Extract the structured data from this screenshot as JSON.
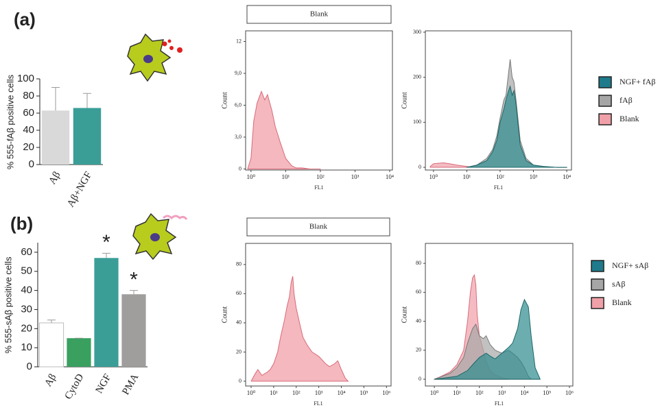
{
  "chart_data": [
    {
      "type": "bar",
      "panel_label": "(a)",
      "ylabel": "% 555-fAβ positive cells",
      "categories": [
        "Aβ",
        "Aβ+NGF"
      ],
      "values": [
        63,
        66
      ],
      "errors": [
        27,
        17
      ],
      "colors": [
        "#d9d9d9",
        "#3a9e97"
      ],
      "ylim": [
        0,
        100
      ],
      "yticks": [
        0,
        20,
        40,
        60,
        80,
        100
      ]
    },
    {
      "type": "area",
      "title": "Blank",
      "ylabel": "Count",
      "xlabel": "FL1",
      "xscale": "log",
      "xlim": [
        0.7,
        12000
      ],
      "ylim": [
        -0.1,
        13
      ],
      "xticks": [
        {
          "value": 1,
          "label": "10⁰"
        },
        {
          "value": 10,
          "label": "10¹"
        },
        {
          "value": 100,
          "label": "10²"
        },
        {
          "value": 1000,
          "label": "10³"
        },
        {
          "value": 10000,
          "label": "10⁴"
        }
      ],
      "yticks": [
        0,
        {
          "value": 3,
          "label": "3,0"
        },
        {
          "value": 6,
          "label": "6,0"
        },
        {
          "value": 9,
          "label": "9,0"
        },
        12
      ],
      "series": [
        {
          "name": "Blank",
          "color": "#f0a0a8",
          "x": [
            0.8,
            1,
            1.2,
            1.5,
            2,
            2.5,
            3,
            4,
            5,
            7,
            10,
            15,
            20,
            30,
            50,
            100
          ],
          "values": [
            0,
            1,
            4.5,
            6.2,
            7.3,
            6.5,
            7,
            5.5,
            4,
            2.5,
            1,
            0.3,
            0.1,
            0.1,
            0,
            0
          ]
        }
      ]
    },
    {
      "type": "area",
      "ylabel": "Count",
      "xlabel": "FL1",
      "xscale": "log",
      "legend": "right",
      "xlim": [
        0.57,
        13900
      ],
      "ylim": [
        -6,
        303
      ],
      "xticks": [
        {
          "value": 1,
          "label": "10⁰"
        },
        {
          "value": 10,
          "label": "10¹"
        },
        {
          "value": 100,
          "label": "10²"
        },
        {
          "value": 1000,
          "label": "10³"
        },
        {
          "value": 10000,
          "label": "10⁴"
        }
      ],
      "yticks": [
        0,
        100,
        200,
        300
      ],
      "series": [
        {
          "name": "NGF+ fAβ",
          "color": "#2e8b8e",
          "x": [
            10,
            20,
            40,
            60,
            80,
            100,
            130,
            150,
            180,
            200,
            230,
            260,
            300,
            400,
            600,
            1000,
            2000,
            5000,
            10000
          ],
          "values": [
            0,
            5,
            15,
            35,
            60,
            100,
            130,
            150,
            170,
            180,
            160,
            170,
            140,
            50,
            15,
            5,
            2,
            0,
            0
          ]
        },
        {
          "name": "fAβ",
          "color": "#a6a6a6",
          "x": [
            10,
            20,
            40,
            60,
            80,
            100,
            130,
            150,
            180,
            200,
            230,
            260,
            300,
            400,
            600,
            1000,
            2000,
            5000,
            10000
          ],
          "values": [
            0,
            5,
            20,
            40,
            70,
            110,
            150,
            160,
            210,
            240,
            200,
            190,
            150,
            60,
            20,
            5,
            2,
            0,
            0
          ]
        },
        {
          "name": "Blank",
          "color": "#f0a0a8",
          "x": [
            0.8,
            1,
            2,
            3,
            5,
            10,
            20
          ],
          "values": [
            2,
            8,
            10,
            8,
            5,
            2,
            0
          ]
        }
      ]
    },
    {
      "type": "bar",
      "panel_label": "(b)",
      "ylabel": "% 555-sAβ positive cells",
      "categories": [
        "Aβ",
        "CytoD",
        "NGF",
        "PMA"
      ],
      "values": [
        23,
        15,
        57,
        38
      ],
      "errors": [
        1.5,
        0,
        2.5,
        2
      ],
      "colors": [
        "#ffffff",
        "#3aa060",
        "#3a9e97",
        "#a09e9c"
      ],
      "annotations": [
        {
          "category": "NGF",
          "text": "*"
        },
        {
          "category": "PMA",
          "text": "*"
        }
      ],
      "ylim": [
        0,
        65
      ],
      "yticks": [
        0,
        10,
        20,
        30,
        40,
        50,
        60
      ]
    },
    {
      "type": "area",
      "title": "Blank",
      "ylabel": "Count",
      "xlabel": "FL1",
      "xscale": "log",
      "xlim": [
        0.57,
        1600000
      ],
      "ylim": [
        -3.3,
        94.5
      ],
      "xticks": [
        {
          "value": 1,
          "label": "10⁰"
        },
        {
          "value": 10,
          "label": "10¹"
        },
        {
          "value": 100,
          "label": "10²"
        },
        {
          "value": 1000,
          "label": "10³"
        },
        {
          "value": 10000,
          "label": "10⁴"
        },
        {
          "value": 100000,
          "label": "10⁵"
        },
        {
          "value": 1000000,
          "label": "10⁶"
        }
      ],
      "yticks": [
        0,
        20,
        40,
        60,
        80
      ],
      "series": [
        {
          "name": "Blank",
          "color": "#f0a0a8",
          "x": [
            1,
            1.5,
            2,
            3,
            5,
            7,
            10,
            15,
            20,
            30,
            40,
            50,
            60,
            70,
            80,
            100,
            150,
            200,
            300,
            500,
            1000,
            2000,
            3000,
            5000,
            7000,
            10000,
            15000,
            20000
          ],
          "values": [
            0,
            5,
            8,
            4,
            6,
            8,
            12,
            20,
            30,
            42,
            52,
            58,
            68,
            72,
            60,
            50,
            38,
            30,
            25,
            20,
            17,
            12,
            10,
            12,
            14,
            8,
            2,
            0
          ]
        }
      ]
    },
    {
      "type": "area",
      "ylabel": "Count",
      "xlabel": "FL1",
      "xscale": "log",
      "legend": "right",
      "xlim": [
        0.4,
        1420000
      ],
      "ylim": [
        -4.7,
        93.8
      ],
      "xticks": [
        {
          "value": 1,
          "label": "10⁰"
        },
        {
          "value": 10,
          "label": "10¹"
        },
        {
          "value": 100,
          "label": "10²"
        },
        {
          "value": 1000,
          "label": "10³"
        },
        {
          "value": 10000,
          "label": "10⁴"
        },
        {
          "value": 100000,
          "label": "10⁵"
        },
        {
          "value": 1000000,
          "label": "10⁶"
        }
      ],
      "yticks": [
        0,
        20,
        40,
        60,
        80
      ],
      "series": [
        {
          "name": "NGF+ sAβ",
          "color": "#2e8b8e",
          "x": [
            1,
            10,
            30,
            50,
            100,
            200,
            300,
            500,
            1000,
            2000,
            3000,
            5000,
            7000,
            10000,
            15000,
            20000,
            30000,
            50000
          ],
          "values": [
            0,
            2,
            6,
            10,
            15,
            18,
            16,
            14,
            18,
            22,
            25,
            35,
            48,
            55,
            50,
            30,
            8,
            0
          ]
        },
        {
          "name": "sAβ",
          "color": "#a6a6a6",
          "x": [
            1,
            5,
            10,
            20,
            30,
            50,
            70,
            100,
            150,
            200,
            300,
            500,
            1000,
            2000,
            3000,
            5000,
            7000,
            10000,
            15000,
            20000,
            50000
          ],
          "values": [
            0,
            4,
            8,
            15,
            25,
            35,
            38,
            30,
            28,
            30,
            24,
            20,
            18,
            20,
            18,
            15,
            12,
            8,
            2,
            0,
            0
          ]
        },
        {
          "name": "Blank",
          "color": "#f0a0a8",
          "x": [
            1,
            2,
            5,
            10,
            20,
            30,
            40,
            50,
            60,
            70,
            80,
            100,
            150,
            200,
            300,
            500,
            1000,
            2000
          ],
          "values": [
            0,
            2,
            5,
            10,
            20,
            40,
            60,
            70,
            72,
            65,
            45,
            30,
            20,
            12,
            6,
            3,
            1,
            0
          ]
        }
      ]
    }
  ]
}
